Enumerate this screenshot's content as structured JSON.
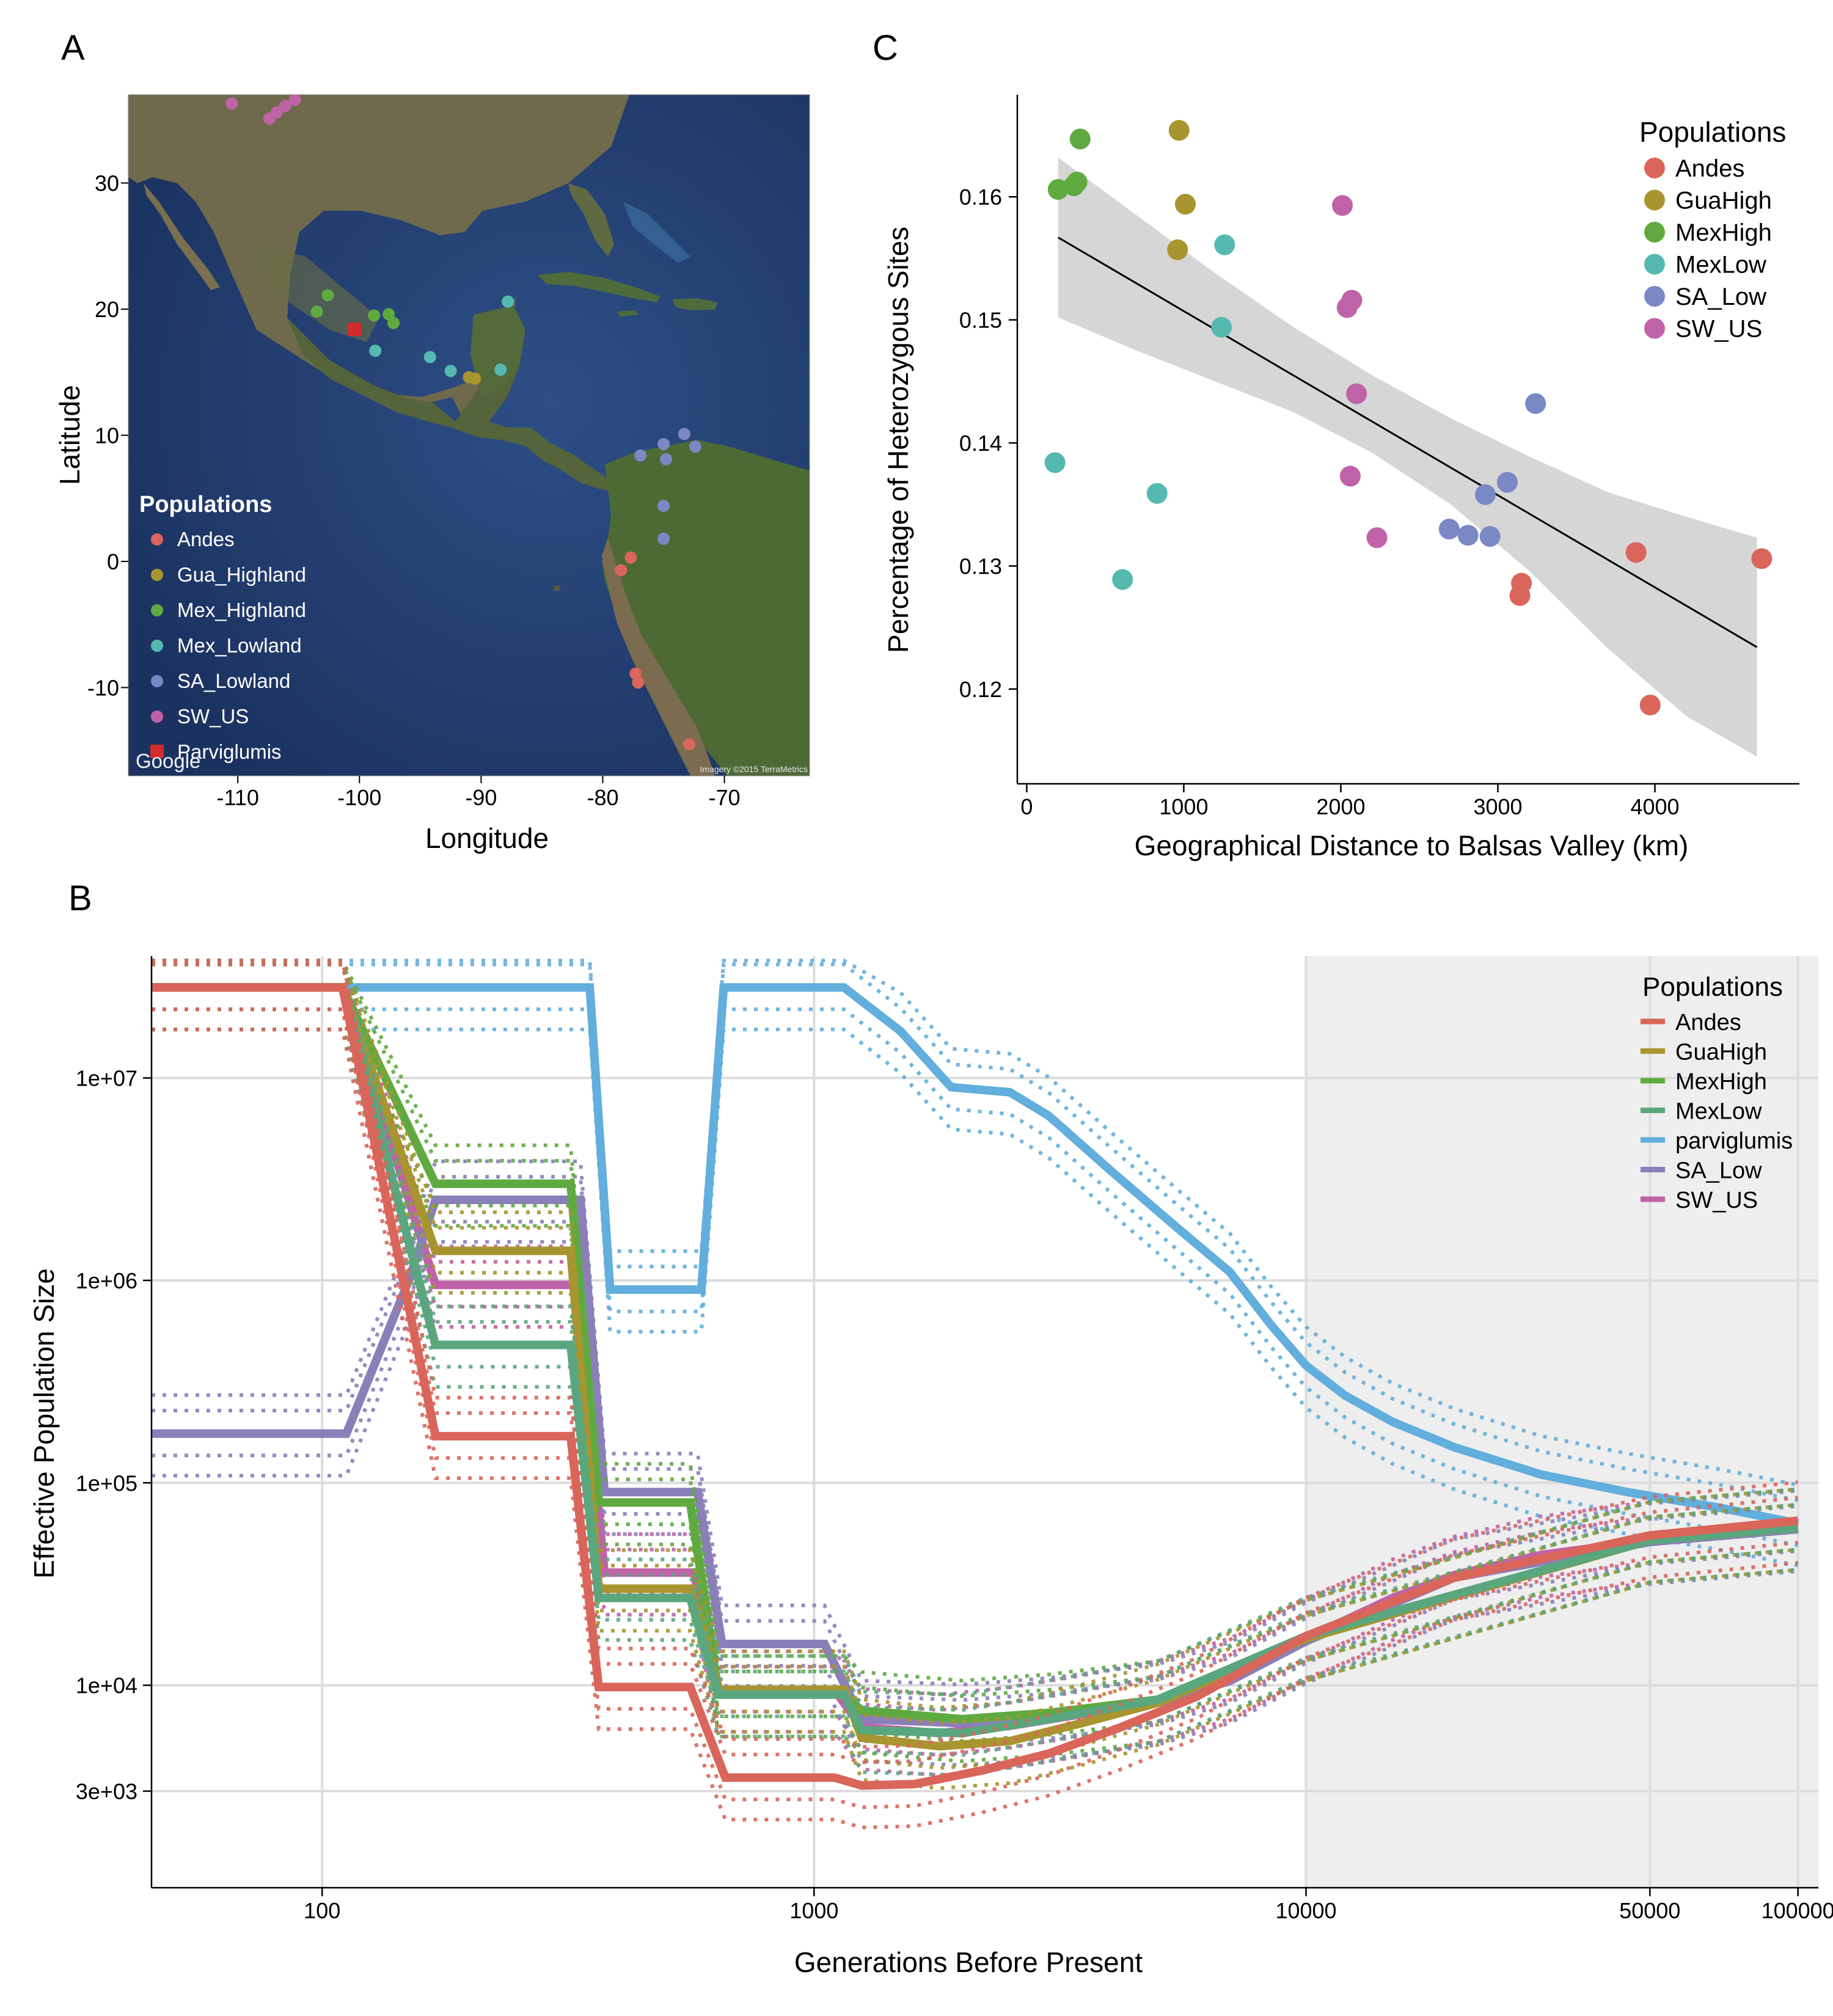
{
  "panels": {
    "a": {
      "label": "A"
    },
    "b": {
      "label": "B"
    },
    "c": {
      "label": "C"
    }
  },
  "colors": {
    "Andes": "#d9655b",
    "GuaHigh": "#a8952f",
    "MexHigh": "#5faa40",
    "MexLow": "#56b9b0",
    "SA_Low": "#7a88c5",
    "SW_US": "#c062a8",
    "parviglumis": "#62aedc",
    "Parviglumis": "#d12b2b",
    "MexLowB": "#5aa67e",
    "SA_LowB": "#8a7fb9"
  },
  "chart_data": [
    {
      "id": "panel-a",
      "type": "scatter",
      "subtype": "map",
      "xlabel": "Longitude",
      "ylabel": "Latitude",
      "xlim": [
        -119,
        -63
      ],
      "ylim": [
        -17,
        37
      ],
      "xticks": [
        -110,
        -100,
        -90,
        -80,
        -70
      ],
      "yticks": [
        -10,
        0,
        10,
        20,
        30
      ],
      "xtick_labels": [
        "-110",
        "-100",
        "-90",
        "-80",
        "-70"
      ],
      "ytick_labels": [
        "-10",
        "0",
        "10",
        "20",
        "30"
      ],
      "legend_title": "Populations",
      "legend_position": "bottom-left",
      "legend": [
        {
          "label": "Andes",
          "key": "Andes"
        },
        {
          "label": "Gua_Highland",
          "key": "GuaHigh"
        },
        {
          "label": "Mex_Highland",
          "key": "MexHigh"
        },
        {
          "label": "Mex_Lowland",
          "key": "MexLow"
        },
        {
          "label": "SA_Lowland",
          "key": "SA_Low"
        },
        {
          "label": "SW_US",
          "key": "SW_US"
        },
        {
          "label": "Parviglumis",
          "key": "Parviglumis",
          "shape": "square"
        }
      ],
      "attribution": "Imagery ©2015 TerraMetrics",
      "brand": "Google",
      "series": [
        {
          "key": "SW_US",
          "points": [
            [
              -110.5,
              36.3
            ],
            [
              -107.4,
              35.1
            ],
            [
              -106.8,
              35.6
            ],
            [
              -106.1,
              36.1
            ],
            [
              -105.3,
              36.6
            ]
          ]
        },
        {
          "key": "MexHigh",
          "points": [
            [
              -102.6,
              21.1
            ],
            [
              -103.5,
              19.8
            ],
            [
              -98.8,
              19.5
            ],
            [
              -97.6,
              19.6
            ],
            [
              -97.2,
              18.9
            ]
          ]
        },
        {
          "key": "Parviglumis",
          "points": [
            [
              -100.4,
              18.4
            ]
          ]
        },
        {
          "key": "MexLow",
          "points": [
            [
              -87.8,
              20.6
            ],
            [
              -98.7,
              16.7
            ],
            [
              -94.2,
              16.2
            ],
            [
              -92.5,
              15.1
            ],
            [
              -88.4,
              15.2
            ]
          ]
        },
        {
          "key": "GuaHigh",
          "points": [
            [
              -91.0,
              14.6
            ],
            [
              -90.5,
              14.5
            ]
          ]
        },
        {
          "key": "SA_Low",
          "points": [
            [
              -73.3,
              10.1
            ],
            [
              -75.0,
              9.3
            ],
            [
              -72.4,
              9.1
            ],
            [
              -76.9,
              8.4
            ],
            [
              -74.8,
              8.1
            ],
            [
              -75.0,
              4.4
            ],
            [
              -75.0,
              1.8
            ]
          ]
        },
        {
          "key": "Andes",
          "points": [
            [
              -77.7,
              0.3
            ],
            [
              -78.5,
              -0.7
            ],
            [
              -77.3,
              -8.9
            ],
            [
              -77.1,
              -9.6
            ],
            [
              -72.9,
              -14.5
            ]
          ]
        }
      ]
    },
    {
      "id": "panel-c",
      "type": "scatter",
      "xlabel": "Geographical Distance to Balsas Valley (km)",
      "ylabel": "Percentage of Heterozygous Sites",
      "xlim": [
        -60,
        4920
      ],
      "ylim": [
        0.1123,
        0.1683
      ],
      "xticks": [
        0,
        1000,
        2000,
        3000,
        4000
      ],
      "yticks": [
        0.12,
        0.13,
        0.14,
        0.15,
        0.16
      ],
      "xtick_labels": [
        "0",
        "1000",
        "2000",
        "3000",
        "4000"
      ],
      "ytick_labels": [
        "0.12",
        "0.13",
        "0.14",
        "0.15",
        "0.16"
      ],
      "legend_title": "Populations",
      "legend_position": "top-right",
      "grid": false,
      "fit": {
        "type": "linear",
        "x": [
          200,
          4650
        ],
        "y": [
          0.1567,
          0.1234
        ]
      },
      "band": {
        "x": [
          200,
          700,
          1200,
          1700,
          2200,
          2700,
          3200,
          3700,
          4200,
          4650
        ],
        "upper": [
          0.1632,
          0.1585,
          0.1538,
          0.1494,
          0.1455,
          0.142,
          0.1389,
          0.136,
          0.134,
          0.1323
        ],
        "lower": [
          0.1502,
          0.1475,
          0.145,
          0.1425,
          0.1392,
          0.135,
          0.1296,
          0.1233,
          0.1178,
          0.1145
        ]
      },
      "series": [
        {
          "name": "Andes",
          "key": "Andes",
          "x": [
            3880,
            3970,
            4680,
            3150,
            3140
          ],
          "y": [
            0.1311,
            0.1187,
            0.1306,
            0.1286,
            0.1276
          ]
        },
        {
          "name": "GuaHigh",
          "key": "GuaHigh",
          "x": [
            970,
            1010,
            960
          ],
          "y": [
            0.1654,
            0.1594,
            0.1557
          ]
        },
        {
          "name": "MexHigh",
          "key": "MexHigh",
          "x": [
            340,
            200,
            300,
            320
          ],
          "y": [
            0.1647,
            0.1606,
            0.1609,
            0.1612
          ]
        },
        {
          "name": "MexLow",
          "key": "MexLow",
          "x": [
            1260,
            1240,
            180,
            830,
            610
          ],
          "y": [
            0.1561,
            0.1494,
            0.1384,
            0.1359,
            0.1289
          ]
        },
        {
          "name": "SA_Low",
          "key": "SA_Low",
          "x": [
            3240,
            3060,
            2920,
            2690,
            2810,
            2950
          ],
          "y": [
            0.1432,
            0.1368,
            0.1358,
            0.133,
            0.1325,
            0.1324
          ]
        },
        {
          "name": "SW_US",
          "key": "SW_US",
          "x": [
            2010,
            2070,
            2040,
            2100,
            2060,
            2230
          ],
          "y": [
            0.1593,
            0.1516,
            0.151,
            0.144,
            0.1373,
            0.1323
          ]
        }
      ]
    },
    {
      "id": "panel-b",
      "type": "line",
      "xlabel": "Generations Before Present",
      "ylabel": "Effective Population Size",
      "xscale": "log",
      "yscale": "log",
      "xlim": [
        45,
        110000
      ],
      "ylim": [
        1000,
        40000000
      ],
      "xticks": [
        100,
        1000,
        10000,
        50000,
        100000
      ],
      "yticks": [
        3000,
        10000,
        100000,
        1000000,
        10000000
      ],
      "xtick_labels": [
        "100",
        "1000",
        "10000",
        "50000",
        "100000"
      ],
      "ytick_labels": [
        "3e+03",
        "1e+04",
        "1e+05",
        "1e+06",
        "1e+07"
      ],
      "shaded_region_x": [
        10000,
        110000
      ],
      "legend_title": "Populations",
      "legend_position": "top-right",
      "legend": [
        {
          "label": "Andes",
          "key": "Andes"
        },
        {
          "label": "GuaHigh",
          "key": "GuaHigh"
        },
        {
          "label": "MexHigh",
          "key": "MexHigh"
        },
        {
          "label": "MexLow",
          "key": "MexLowB"
        },
        {
          "label": "parviglumis",
          "key": "parviglumis"
        },
        {
          "label": "SA_Low",
          "key": "SA_LowB"
        },
        {
          "label": "SW_US",
          "key": "SW_US"
        }
      ],
      "series": [
        {
          "name": "parviglumis",
          "key": "parviglumis",
          "points": [
            [
              45,
              28000000
            ],
            [
              350,
              28000000
            ],
            [
              385,
              900000
            ],
            [
              590,
              900000
            ],
            [
              655,
              28000000
            ],
            [
              1150,
              28000000
            ],
            [
              1500,
              17000000
            ],
            [
              1900,
              9000000
            ],
            [
              2500,
              8500000
            ],
            [
              3000,
              6500000
            ],
            [
              4000,
              3500000
            ],
            [
              5500,
              1800000
            ],
            [
              7000,
              1100000
            ],
            [
              8500,
              600000
            ],
            [
              10000,
              380000
            ],
            [
              12000,
              270000
            ],
            [
              15000,
              200000
            ],
            [
              20000,
              150000
            ],
            [
              30000,
              110000
            ],
            [
              45000,
              90000
            ],
            [
              70000,
              75000
            ],
            [
              100000,
              63000
            ]
          ]
        },
        {
          "name": "SW_US",
          "key": "SW_US",
          "points": [
            [
              45,
              28000000
            ],
            [
              110,
              28000000
            ],
            [
              170,
              950000
            ],
            [
              330,
              950000
            ],
            [
              375,
              36000
            ],
            [
              570,
              36000
            ],
            [
              640,
              9500
            ],
            [
              1100,
              9500
            ],
            [
              1250,
              6200
            ],
            [
              1800,
              5800
            ],
            [
              2500,
              6300
            ],
            [
              3500,
              7200
            ],
            [
              5000,
              8500
            ],
            [
              7000,
              11000
            ],
            [
              10000,
              17000
            ],
            [
              15000,
              27000
            ],
            [
              20000,
              35000
            ],
            [
              30000,
              44000
            ],
            [
              50000,
              52000
            ],
            [
              100000,
              60000
            ]
          ]
        },
        {
          "name": "SA_Low",
          "key": "SA_LowB",
          "points": [
            [
              45,
              175000
            ],
            [
              112,
              175000
            ],
            [
              150,
              1000000
            ],
            [
              170,
              2500000
            ],
            [
              335,
              2500000
            ],
            [
              375,
              90000
            ],
            [
              580,
              90000
            ],
            [
              650,
              16000
            ],
            [
              1050,
              16000
            ],
            [
              1250,
              6800
            ],
            [
              2000,
              6500
            ],
            [
              3000,
              7000
            ],
            [
              5000,
              8200
            ],
            [
              7000,
              10500
            ],
            [
              10000,
              16500
            ],
            [
              20000,
              34000
            ],
            [
              50000,
              51000
            ],
            [
              100000,
              59000
            ]
          ]
        },
        {
          "name": "MexHigh",
          "key": "MexHigh",
          "points": [
            [
              45,
              28000000
            ],
            [
              110,
              28000000
            ],
            [
              170,
              3000000
            ],
            [
              320,
              3000000
            ],
            [
              365,
              80000
            ],
            [
              560,
              80000
            ],
            [
              640,
              9000
            ],
            [
              1150,
              9000
            ],
            [
              1250,
              7500
            ],
            [
              2000,
              6800
            ],
            [
              3000,
              7300
            ],
            [
              5000,
              8500
            ],
            [
              10000,
              17000
            ],
            [
              50000,
              52000
            ],
            [
              100000,
              60000
            ]
          ]
        },
        {
          "name": "GuaHigh",
          "key": "GuaHigh",
          "points": [
            [
              45,
              28000000
            ],
            [
              110,
              28000000
            ],
            [
              170,
              1400000
            ],
            [
              320,
              1400000
            ],
            [
              365,
              30000
            ],
            [
              560,
              30000
            ],
            [
              640,
              9500
            ],
            [
              1150,
              9500
            ],
            [
              1250,
              5500
            ],
            [
              1800,
              5000
            ],
            [
              2500,
              5300
            ],
            [
              3500,
              6500
            ],
            [
              5000,
              8200
            ],
            [
              10000,
              17000
            ],
            [
              50000,
              52000
            ],
            [
              100000,
              60000
            ]
          ]
        },
        {
          "name": "MexLow",
          "key": "MexLowB",
          "points": [
            [
              45,
              28000000
            ],
            [
              110,
              28000000
            ],
            [
              170,
              480000
            ],
            [
              320,
              480000
            ],
            [
              365,
              27000
            ],
            [
              560,
              27000
            ],
            [
              640,
              9000
            ],
            [
              1150,
              9000
            ],
            [
              1250,
              6000
            ],
            [
              2000,
              5800
            ],
            [
              3000,
              6800
            ],
            [
              5000,
              8500
            ],
            [
              10000,
              17500
            ],
            [
              50000,
              52000
            ],
            [
              100000,
              60000
            ]
          ]
        },
        {
          "name": "Andes",
          "key": "Andes",
          "points": [
            [
              45,
              28000000
            ],
            [
              110,
              28000000
            ],
            [
              170,
              170000
            ],
            [
              320,
              170000
            ],
            [
              365,
              9800
            ],
            [
              560,
              9800
            ],
            [
              660,
              3500
            ],
            [
              1100,
              3500
            ],
            [
              1250,
              3200
            ],
            [
              1600,
              3250
            ],
            [
              2200,
              3800
            ],
            [
              3000,
              4600
            ],
            [
              4200,
              6200
            ],
            [
              6000,
              8800
            ],
            [
              10000,
              17500
            ],
            [
              20000,
              34000
            ],
            [
              50000,
              55000
            ],
            [
              100000,
              65000
            ]
          ]
        }
      ]
    }
  ]
}
